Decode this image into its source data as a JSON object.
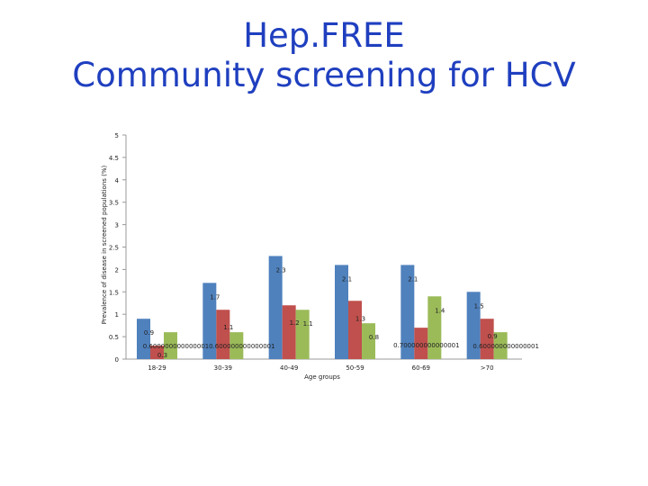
{
  "slide": {
    "title_line1": "Hep.FREE",
    "title_line2": "Community screening for HCV"
  },
  "chart_data": {
    "type": "bar",
    "ylabel": "Prevalence of disease in screened populations (%)",
    "xlabel": "Age groups",
    "ylim": [
      0,
      5
    ],
    "yticks": [
      "0",
      "0.5",
      "1",
      "1.5",
      "2",
      "2.5",
      "3",
      "3.5",
      "4",
      "4.5",
      "5"
    ],
    "categories": [
      "18-29",
      "30-39",
      "40-49",
      "50-59",
      "60-69",
      ">70"
    ],
    "series": [
      {
        "values": [
          0.9,
          1.7,
          2.3,
          2.1,
          2.1,
          1.5
        ],
        "labels": [
          "0.9",
          "1.7",
          "2.3",
          "2.1",
          "2.1",
          "1.5"
        ],
        "color": "#4f81bd"
      },
      {
        "values": [
          0.3,
          1.1,
          1.2,
          1.3,
          0.7,
          0.9
        ],
        "labels": [
          "0.3",
          "1.1",
          "1.2",
          "1.3",
          "0.700000000000001",
          "0.9"
        ],
        "color": "#c0504d"
      },
      {
        "values": [
          0.6,
          0.6,
          1.1,
          0.8,
          1.4,
          0.6
        ],
        "labels": [
          "0.600000000000001",
          "0.600000000000001",
          "1.1",
          "0.8",
          "1.4",
          "0.600000000000001"
        ],
        "color": "#9bbb59"
      }
    ],
    "grid": false,
    "legend": "none"
  }
}
